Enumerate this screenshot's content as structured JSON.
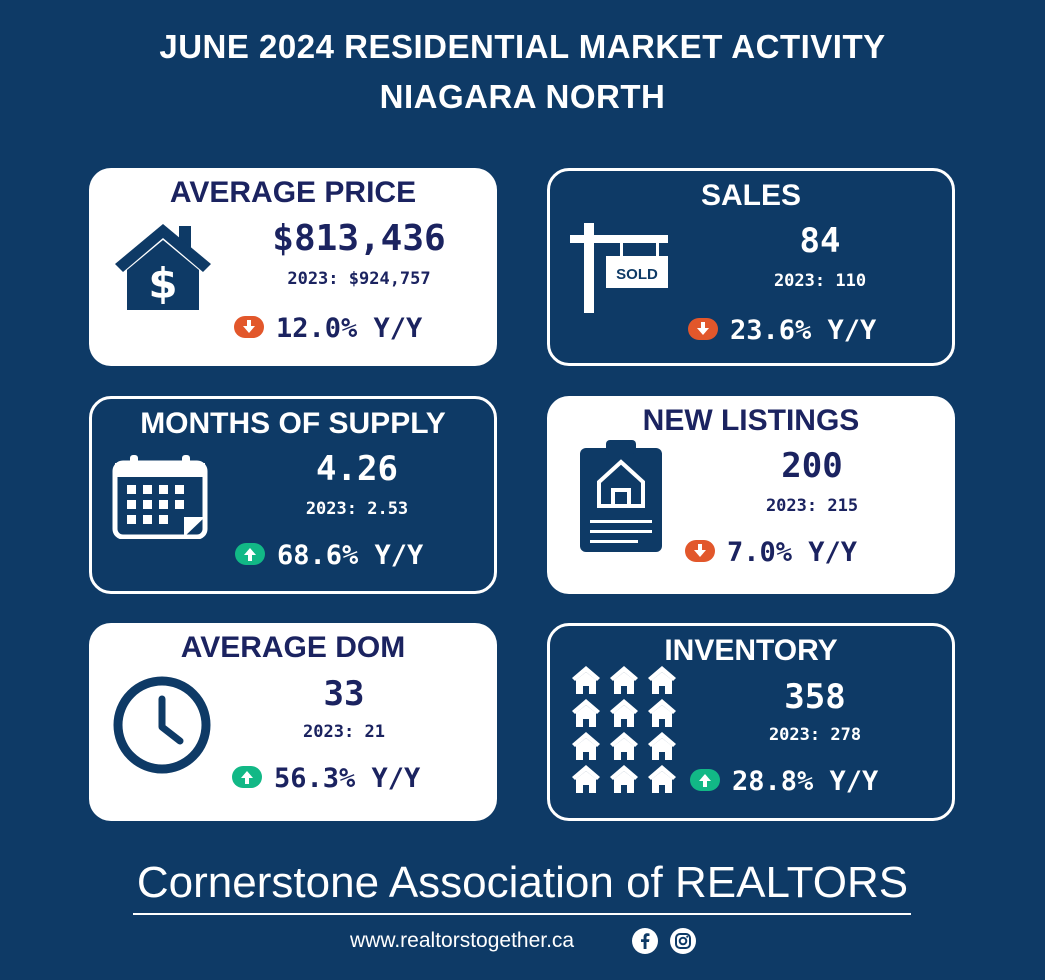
{
  "header": {
    "title_line1": "JUNE 2024 RESIDENTIAL MARKET ACTIVITY",
    "title_line2": "NIAGARA NORTH"
  },
  "colors": {
    "background": "#0e3a66",
    "card_text": "#1b2360",
    "down_arrow": "#e2572b",
    "up_arrow": "#12b886"
  },
  "cards": {
    "average_price": {
      "title": "AVERAGE PRICE",
      "value": "$813,436",
      "prev": "2023: $924,757",
      "yoy": "12.0% Y/Y",
      "direction": "down",
      "icon": "house-dollar-icon"
    },
    "sales": {
      "title": "SALES",
      "value": "84",
      "prev": "2023: 110",
      "yoy": "23.6% Y/Y",
      "direction": "down",
      "icon": "sold-sign-icon",
      "sign_text": "SOLD"
    },
    "months_of_supply": {
      "title": "MONTHS OF SUPPLY",
      "value": "4.26",
      "prev": "2023: 2.53",
      "yoy": "68.6% Y/Y",
      "direction": "up",
      "icon": "calendar-icon"
    },
    "new_listings": {
      "title": "NEW LISTINGS",
      "value": "200",
      "prev": "2023: 215",
      "yoy": "7.0% Y/Y",
      "direction": "down",
      "icon": "clipboard-house-icon"
    },
    "average_dom": {
      "title": "AVERAGE DOM",
      "value": "33",
      "prev": "2023: 21",
      "yoy": "56.3% Y/Y",
      "direction": "up",
      "icon": "clock-icon"
    },
    "inventory": {
      "title": "INVENTORY",
      "value": "358",
      "prev": "2023: 278",
      "yoy": "28.8% Y/Y",
      "direction": "up",
      "icon": "houses-grid-icon"
    }
  },
  "footer": {
    "organization": "Cornerstone Association of REALTORS",
    "url": "www.realtorstogether.ca",
    "social_icons": [
      "facebook-icon",
      "instagram-icon"
    ]
  }
}
